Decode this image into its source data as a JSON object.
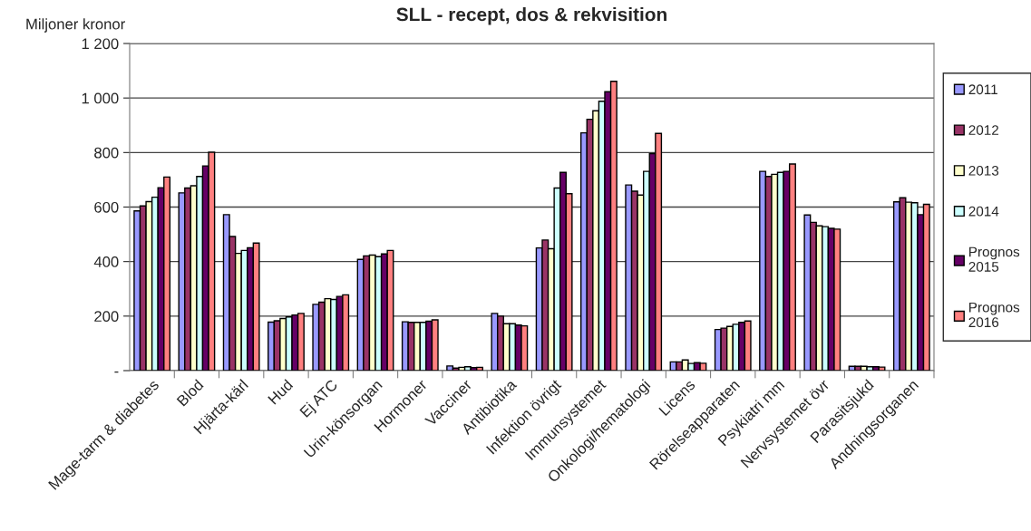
{
  "chart_data": {
    "type": "bar",
    "title": "SLL - recept, dos & rekvisition",
    "ylabel": "Miljoner kronor",
    "categories": [
      "Mage-tarm & diabetes",
      "Blod",
      "Hjärta-kärl",
      "Hud",
      "Ej ATC",
      "Urin-könsorgan",
      "Hormoner",
      "Vacciner",
      "Antibiotika",
      "Infektion övrigt",
      "Immunsystemet",
      "Onkologi/hematologi",
      "Licens",
      "Rörelseapparaten",
      "Psykiatri mm",
      "Nervsystemet övr",
      "Parasitsjukd",
      "Andningsorganen"
    ],
    "series": [
      {
        "name": "2011",
        "color": "#9999ff",
        "values": [
          586,
          652,
          572,
          178,
          243,
          408,
          179,
          17,
          210,
          450,
          872,
          681,
          32,
          151,
          731,
          571,
          16,
          619
        ]
      },
      {
        "name": "2012",
        "color": "#993366",
        "values": [
          604,
          670,
          492,
          183,
          251,
          421,
          177,
          9,
          200,
          479,
          922,
          658,
          32,
          156,
          712,
          544,
          16,
          634
        ]
      },
      {
        "name": "2013",
        "color": "#ffffcc",
        "values": [
          620,
          678,
          430,
          191,
          264,
          424,
          177,
          12,
          172,
          447,
          953,
          644,
          39,
          162,
          720,
          531,
          16,
          618
        ]
      },
      {
        "name": "2014",
        "color": "#ccffff",
        "values": [
          636,
          712,
          441,
          197,
          261,
          418,
          177,
          14,
          172,
          670,
          988,
          731,
          26,
          170,
          727,
          528,
          14,
          616
        ]
      },
      {
        "name": "Prognos\n2015",
        "color": "#660066",
        "values": [
          671,
          751,
          451,
          204,
          272,
          428,
          181,
          11,
          167,
          727,
          1023,
          796,
          29,
          177,
          731,
          522,
          14,
          572
        ]
      },
      {
        "name": "Prognos\n2016",
        "color": "#ff8080",
        "values": [
          710,
          801,
          468,
          210,
          278,
          441,
          186,
          12,
          164,
          649,
          1061,
          870,
          27,
          182,
          758,
          519,
          13,
          610
        ]
      }
    ],
    "ylim": [
      0,
      1200
    ],
    "yticks": [
      {
        "value": 0,
        "label": "-"
      },
      {
        "value": 200,
        "label": "200"
      },
      {
        "value": 400,
        "label": "400"
      },
      {
        "value": 600,
        "label": "600"
      },
      {
        "value": 800,
        "label": "800"
      },
      {
        "value": 1000,
        "label": "1 000"
      },
      {
        "value": 1200,
        "label": "1 200"
      }
    ],
    "grid": "y",
    "legend": "right"
  }
}
